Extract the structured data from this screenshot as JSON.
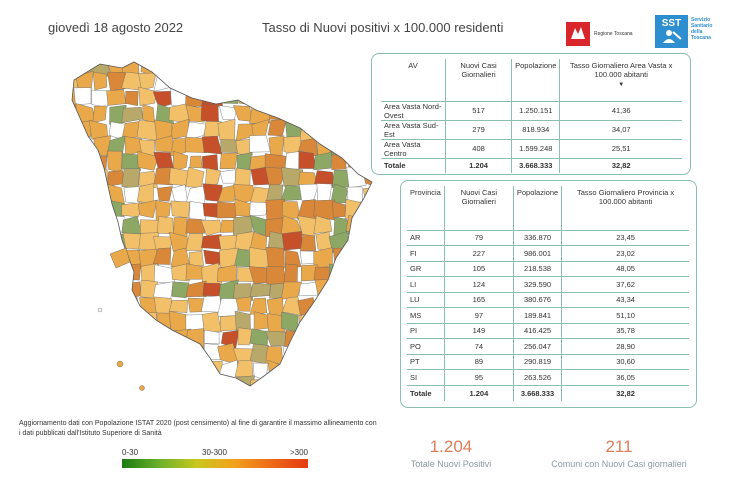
{
  "header": {
    "date": "giovedì 18 agosto 2022",
    "title": "Tasso di Nuovi positivi x 100.000 residenti"
  },
  "logos": {
    "regione": "Regione Toscana",
    "sst_mark": "SST",
    "sst_lines": [
      "Servizio",
      "Sanitario",
      "della",
      "Toscana"
    ]
  },
  "av_table": {
    "headers": [
      "AV",
      "Nuovi Casi Giornalieri",
      "Popolazione",
      "Tasso Giornaliero Area Vasta x 100.000 abitanti"
    ],
    "rows": [
      [
        "Area Vasta Nord-Ovest",
        "517",
        "1.250.151",
        "41,36"
      ],
      [
        "Area Vasta Sud-Est",
        "279",
        "818.934",
        "34,07"
      ],
      [
        "Area Vasta Centro",
        "408",
        "1.599.248",
        "25,51"
      ]
    ],
    "total": [
      "Totale",
      "1.204",
      "3.668.333",
      "32,82"
    ]
  },
  "prov_table": {
    "headers": [
      "Provincia",
      "Nuovi Casi Giornalieri",
      "Popolazione",
      "Tasso Giornaliero Provincia x 100.000 abitanti"
    ],
    "rows": [
      [
        "AR",
        "79",
        "336.870",
        "23,45"
      ],
      [
        "FI",
        "227",
        "986.001",
        "23,02"
      ],
      [
        "GR",
        "105",
        "218.538",
        "48,05"
      ],
      [
        "LI",
        "124",
        "329.590",
        "37,62"
      ],
      [
        "LU",
        "165",
        "380.676",
        "43,34"
      ],
      [
        "MS",
        "97",
        "189.841",
        "51,10"
      ],
      [
        "PI",
        "149",
        "416.425",
        "35,78"
      ],
      [
        "PO",
        "74",
        "256.047",
        "28,90"
      ],
      [
        "PT",
        "89",
        "290.819",
        "30,60"
      ],
      [
        "SI",
        "95",
        "263.526",
        "36,05"
      ]
    ],
    "total": [
      "Totale",
      "1.204",
      "3.668.333",
      "32,82"
    ]
  },
  "footnote": "Aggiornamento dati con Popolazione ISTAT 2020 (post censimento) al fine di garantire il massimo allineamento con i dati pubblicati dall'Istituto Superiore di Sanità",
  "legend": {
    "labels": [
      "0-30",
      "30-300",
      ">300"
    ],
    "colors": [
      "#1b7a12",
      "#6bb02a",
      "#c8c81e",
      "#f2a21d",
      "#ee6a18",
      "#e53b10"
    ]
  },
  "kpis": [
    {
      "value": "1.204",
      "label": "Totale Nuovi Positivi"
    },
    {
      "value": "211",
      "label": "Comuni con Nuovi Casi giornalieri"
    }
  ],
  "map": {
    "fill_colors": [
      "#e9a84a",
      "#d9883a",
      "#f3c06a",
      "#8da865",
      "#ffffff",
      "#c6502a",
      "#b8a86a"
    ]
  }
}
